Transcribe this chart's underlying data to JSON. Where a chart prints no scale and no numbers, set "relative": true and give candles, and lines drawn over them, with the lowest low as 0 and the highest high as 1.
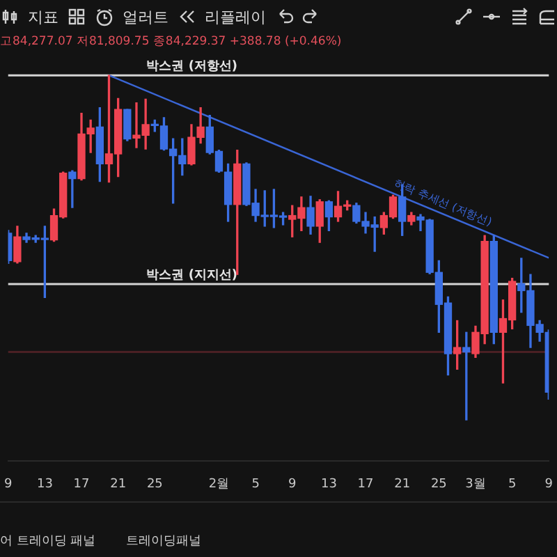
{
  "chart_data": {
    "type": "candlestick",
    "relative": true,
    "x": [
      "--01-09",
      "--01-10",
      "--01-11",
      "--01-12",
      "--01-13",
      "--01-14",
      "--01-15",
      "--01-16",
      "--01-17",
      "--01-18",
      "--01-19",
      "--01-20",
      "--01-21",
      "--01-22",
      "--01-23",
      "--01-24",
      "--01-25",
      "--01-26",
      "--01-27",
      "--01-28",
      "--01-29",
      "--01-30",
      "--01-31",
      "--02-01",
      "--02-02",
      "--02-03",
      "--02-04",
      "--02-05",
      "--02-06",
      "--02-07",
      "--02-08",
      "--02-09",
      "--02-10",
      "--02-11",
      "--02-12",
      "--02-13",
      "--02-14",
      "--02-15",
      "--02-16",
      "--02-17",
      "--02-18",
      "--02-19",
      "--02-20",
      "--02-21",
      "--02-22",
      "--02-23",
      "--02-24",
      "--02-25",
      "--02-26",
      "--02-27",
      "--02-28",
      "--03-01",
      "--03-02",
      "--03-03",
      "--03-04",
      "--03-05",
      "--03-06",
      "--03-07",
      "--03-08",
      "--03-09"
    ],
    "ohlc": [
      [
        0.542,
        0.55,
        0.454,
        0.462
      ],
      [
        0.459,
        0.562,
        0.455,
        0.531
      ],
      [
        0.531,
        0.542,
        0.515,
        0.523
      ],
      [
        0.526,
        0.535,
        0.515,
        0.524
      ],
      [
        0.526,
        0.562,
        0.355,
        0.523
      ],
      [
        0.522,
        0.612,
        0.518,
        0.593
      ],
      [
        0.589,
        0.719,
        0.586,
        0.716
      ],
      [
        0.719,
        0.723,
        0.616,
        0.7
      ],
      [
        0.7,
        0.89,
        0.696,
        0.83
      ],
      [
        0.83,
        0.87,
        0.776,
        0.847
      ],
      [
        0.85,
        0.906,
        0.692,
        0.743
      ],
      [
        0.743,
        1.0,
        0.69,
        0.772
      ],
      [
        0.772,
        0.933,
        0.706,
        0.901
      ],
      [
        0.901,
        0.901,
        0.81,
        0.815
      ],
      [
        0.818,
        0.92,
        0.79,
        0.826
      ],
      [
        0.826,
        0.931,
        0.786,
        0.857
      ],
      [
        0.857,
        0.87,
        0.837,
        0.854
      ],
      [
        0.853,
        0.877,
        0.783,
        0.786
      ],
      [
        0.786,
        0.816,
        0.629,
        0.767
      ],
      [
        0.767,
        0.816,
        0.71,
        0.743
      ],
      [
        0.743,
        0.857,
        0.74,
        0.82
      ],
      [
        0.82,
        0.906,
        0.803,
        0.85
      ],
      [
        0.85,
        0.884,
        0.772,
        0.776
      ],
      [
        0.779,
        0.783,
        0.719,
        0.722
      ],
      [
        0.719,
        0.743,
        0.576,
        0.625
      ],
      [
        0.625,
        0.783,
        0.422,
        0.743
      ],
      [
        0.743,
        0.746,
        0.622,
        0.625
      ],
      [
        0.629,
        0.669,
        0.576,
        0.593
      ],
      [
        0.593,
        0.665,
        0.562,
        0.59
      ],
      [
        0.592,
        0.669,
        0.558,
        0.59
      ],
      [
        0.59,
        0.602,
        0.566,
        0.588
      ],
      [
        0.582,
        0.622,
        0.531,
        0.593
      ],
      [
        0.585,
        0.647,
        0.549,
        0.616
      ],
      [
        0.616,
        0.649,
        0.539,
        0.562
      ],
      [
        0.562,
        0.639,
        0.515,
        0.633
      ],
      [
        0.633,
        0.636,
        0.549,
        0.589
      ],
      [
        0.589,
        0.663,
        0.576,
        0.62
      ],
      [
        0.62,
        0.636,
        0.609,
        0.622
      ],
      [
        0.622,
        0.629,
        0.571,
        0.576
      ],
      [
        0.576,
        0.602,
        0.542,
        0.562
      ],
      [
        0.566,
        0.589,
        0.489,
        0.559
      ],
      [
        0.558,
        0.602,
        0.539,
        0.593
      ],
      [
        0.589,
        0.652,
        0.585,
        0.647
      ],
      [
        0.647,
        0.683,
        0.535,
        0.576
      ],
      [
        0.576,
        0.602,
        0.566,
        0.593
      ],
      [
        0.589,
        0.596,
        0.549,
        0.58
      ],
      [
        0.58,
        0.582,
        0.424,
        0.428
      ],
      [
        0.428,
        0.462,
        0.254,
        0.335
      ],
      [
        0.339,
        0.357,
        0.13,
        0.192
      ],
      [
        0.192,
        0.288,
        0.147,
        0.21
      ],
      [
        0.21,
        0.254,
        0.0,
        0.197
      ],
      [
        0.192,
        0.272,
        0.181,
        0.254
      ],
      [
        0.25,
        0.535,
        0.221,
        0.518
      ],
      [
        0.518,
        0.535,
        0.221,
        0.254
      ],
      [
        0.254,
        0.348,
        0.107,
        0.294
      ],
      [
        0.29,
        0.411,
        0.264,
        0.402
      ],
      [
        0.395,
        0.469,
        0.312,
        0.375
      ],
      [
        0.375,
        0.422,
        0.21,
        0.274
      ],
      [
        0.277,
        0.288,
        0.228,
        0.254
      ],
      [
        0.254,
        0.261,
        0.06,
        0.08
      ]
    ],
    "colors": [
      "#3b6fe3",
      "#ef4452",
      "#3b6fe3",
      "#3b6fe3",
      "#3b6fe3",
      "#ef4452",
      "#ef4452",
      "#3b6fe3",
      "#ef4452",
      "#ef4452",
      "#3b6fe3",
      "#ef4452",
      "#ef4452",
      "#3b6fe3",
      "#ef4452",
      "#ef4452",
      "#3b6fe3",
      "#3b6fe3",
      "#3b6fe3",
      "#3b6fe3",
      "#ef4452",
      "#ef4452",
      "#3b6fe3",
      "#3b6fe3",
      "#3b6fe3",
      "#ef4452",
      "#3b6fe3",
      "#3b6fe3",
      "#3b6fe3",
      "#3b6fe3",
      "#3b6fe3",
      "#ef4452",
      "#ef4452",
      "#3b6fe3",
      "#ef4452",
      "#3b6fe3",
      "#ef4452",
      "#ef4452",
      "#3b6fe3",
      "#3b6fe3",
      "#3b6fe3",
      "#ef4452",
      "#ef4452",
      "#3b6fe3",
      "#ef4452",
      "#3b6fe3",
      "#3b6fe3",
      "#3b6fe3",
      "#3b6fe3",
      "#ef4452",
      "#3b6fe3",
      "#ef4452",
      "#ef4452",
      "#3b6fe3",
      "#ef4452",
      "#ef4452",
      "#3b6fe3",
      "#3b6fe3",
      "#3b6fe3",
      "#3b6fe3"
    ],
    "xlim": [
      "--01-09",
      "--03-09"
    ],
    "xticks": [
      {
        "value": "--01-09",
        "label": "9"
      },
      {
        "value": "--01-13",
        "label": "13"
      },
      {
        "value": "--01-17",
        "label": "17"
      },
      {
        "value": "--01-21",
        "label": "21"
      },
      {
        "value": "--01-25",
        "label": "25"
      },
      {
        "value": "--02-01",
        "label": "2월"
      },
      {
        "value": "--02-05",
        "label": "5"
      },
      {
        "value": "--02-09",
        "label": "9"
      },
      {
        "value": "--02-13",
        "label": "13"
      },
      {
        "value": "--02-17",
        "label": "17"
      },
      {
        "value": "--02-21",
        "label": "21"
      },
      {
        "value": "--02-25",
        "label": "25"
      },
      {
        "value": "--03-01",
        "label": "3월"
      },
      {
        "value": "--03-05",
        "label": "5"
      },
      {
        "value": "--03-09",
        "label": "9"
      }
    ],
    "series": [
      {
        "type": "line",
        "x": [
          "--01-20",
          "--03-09"
        ],
        "values": [
          1.0,
          0.47
        ],
        "color": "#3a66d6"
      }
    ],
    "ref_lines": [
      {
        "axis": "y",
        "value": 1.0,
        "label": "박스권 (저항선)",
        "color": "#d4d4d4"
      },
      {
        "axis": "y",
        "value": 0.394,
        "label": "박스권 (지지선)",
        "color": "#d4d4d4"
      },
      {
        "axis": "y",
        "value": 0.197,
        "color": "#4a2024"
      }
    ],
    "annotations": [
      "지표",
      "얼러트",
      "리플레이",
      "고84,277.07 저81,809.75 종84,229.37 +388.78 (+0.46%)",
      "어 트레이딩 패널",
      "트레이딩패널",
      "하락 추세선 (저항선)"
    ]
  }
}
